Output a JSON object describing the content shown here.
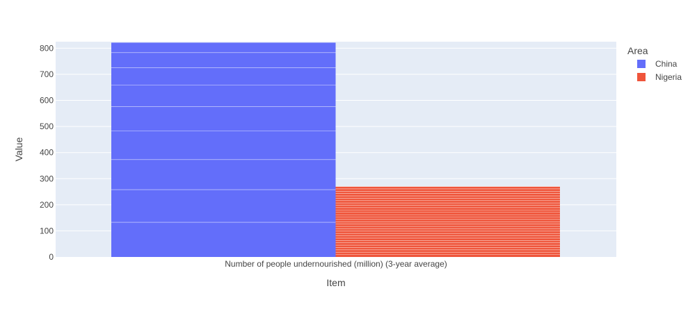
{
  "chart_data": {
    "type": "bar",
    "barmode": "stacked-segments",
    "categories": [
      "Number of people undernourished (million) (3-year average)"
    ],
    "xlabel": "Item",
    "ylabel": "Value",
    "ylim": [
      0,
      825
    ],
    "yticks": [
      0,
      100,
      200,
      300,
      400,
      500,
      600,
      700,
      800
    ],
    "grid": true,
    "legend_title": "Area",
    "legend_position": "top-right",
    "series": [
      {
        "name": "China",
        "color": "#636efa",
        "total": 822,
        "segment_boundaries": [
          133,
          258,
          373,
          483,
          576,
          658,
          725,
          783,
          822
        ]
      },
      {
        "name": "Nigeria",
        "color": "#ef553b",
        "total": 270,
        "segment_count": 30
      }
    ]
  }
}
